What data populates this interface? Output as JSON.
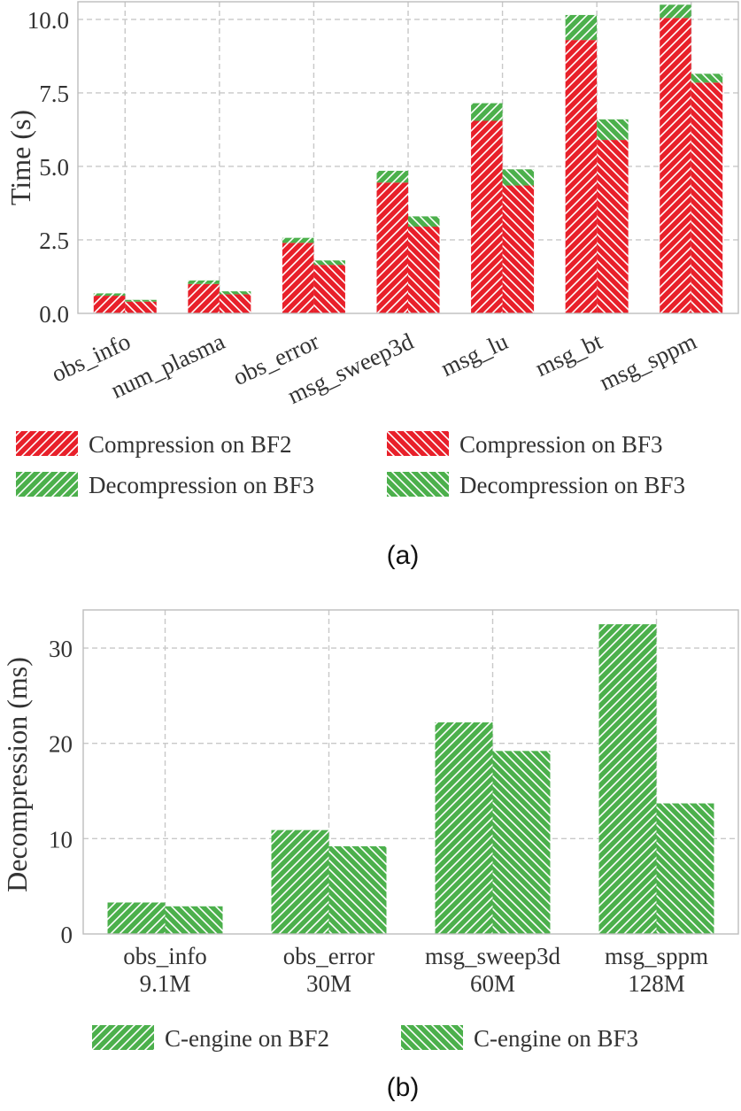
{
  "colors": {
    "red": "#e8202a",
    "green": "#4cb04c",
    "hatch": "#ffffff"
  },
  "chart_data": [
    {
      "type": "bar",
      "stacked": true,
      "caption": "(a)",
      "ylabel": "Time (s)",
      "ylim": [
        0,
        10.6
      ],
      "yticks": [
        "0.0",
        "2.5",
        "5.0",
        "7.5",
        "10.0"
      ],
      "ytick_values": [
        0,
        2.5,
        5,
        7.5,
        10
      ],
      "grid": true,
      "legend_position": "bottom",
      "categories": [
        "obs_info",
        "num_plasma",
        "obs_error",
        "msg_sweep3d",
        "msg_lu",
        "msg_bt",
        "msg_sppm"
      ],
      "series": [
        {
          "name": "Compression on BF2",
          "color": "red",
          "hatch": "fwd",
          "group": 0,
          "values": [
            0.6,
            1.0,
            2.4,
            4.45,
            6.55,
            9.3,
            10.05
          ]
        },
        {
          "name": "Compression on BF3",
          "color": "red",
          "hatch": "back",
          "group": 1,
          "values": [
            0.4,
            0.65,
            1.65,
            2.95,
            4.35,
            5.9,
            7.85
          ]
        },
        {
          "name": "Decompression on BF3",
          "color": "green",
          "hatch": "fwd",
          "group": 0,
          "values": [
            0.08,
            0.12,
            0.17,
            0.4,
            0.6,
            0.85,
            0.45
          ]
        },
        {
          "name": "Decompression on BF3",
          "color": "green",
          "hatch": "back",
          "group": 1,
          "values": [
            0.06,
            0.1,
            0.15,
            0.35,
            0.55,
            0.7,
            0.3
          ]
        }
      ]
    },
    {
      "type": "bar",
      "caption": "(b)",
      "ylabel": "Decompression (ms)",
      "ylim": [
        0,
        34
      ],
      "yticks": [
        "0",
        "10",
        "20",
        "30"
      ],
      "ytick_values": [
        0,
        10,
        20,
        30
      ],
      "grid": true,
      "legend_position": "bottom",
      "categories": [
        "obs_info",
        "obs_error",
        "msg_sweep3d",
        "msg_sppm"
      ],
      "category_sizes": [
        "9.1M",
        "30M",
        "60M",
        "128M"
      ],
      "series": [
        {
          "name": "C-engine on BF2",
          "color": "green",
          "hatch": "fwd",
          "values": [
            3.3,
            10.9,
            22.2,
            32.5
          ]
        },
        {
          "name": "C-engine on BF3",
          "color": "green",
          "hatch": "back",
          "values": [
            2.9,
            9.2,
            19.2,
            13.7
          ]
        }
      ]
    }
  ]
}
